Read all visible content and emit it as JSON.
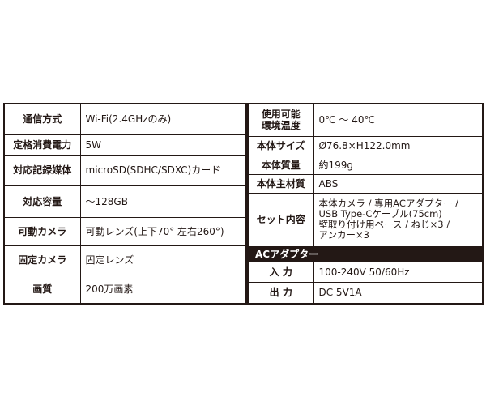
{
  "left_rows": [
    {
      "label": "通信方式",
      "value": "Wi-Fi(2.4GHzのみ)"
    },
    {
      "label": "定格消費電力",
      "value": "5W"
    },
    {
      "label": "対応記録媒体",
      "value": "microSD(SDHC/SDXC)カード"
    },
    {
      "label": "対応容量",
      "value": "〜128GB"
    },
    {
      "label": "可動カメラ",
      "value": "可動レンズ(上下70° 左右260°)"
    },
    {
      "label": "固定カメラ",
      "value": "固定レンズ"
    },
    {
      "label": "画質",
      "value": "200万画素"
    }
  ],
  "right_rows": [
    {
      "label_line1": "使用可能",
      "label_line2": "環境温度",
      "value": "0℃ 〜 40℃"
    },
    {
      "label": "本体サイズ",
      "value": "Ø76.8×H122.0mm"
    },
    {
      "label": "本体質量",
      "value": "約199g"
    },
    {
      "label": "本体主材質",
      "value": "ABS"
    },
    {
      "label": "セット内容",
      "value": [
        "本体カメラ / 専用ACアダプター /",
        "USB Type-Cケーブル(75cm)",
        "壁取り付け用ベース / ねじ×3 /",
        "アンカー×3"
      ]
    }
  ],
  "adapter": {
    "header": "ACアダプター",
    "rows": [
      {
        "label": "入 力",
        "value": "100-240V 50/60Hz"
      },
      {
        "label": "出 力",
        "value": "DC 5V1A"
      }
    ]
  }
}
